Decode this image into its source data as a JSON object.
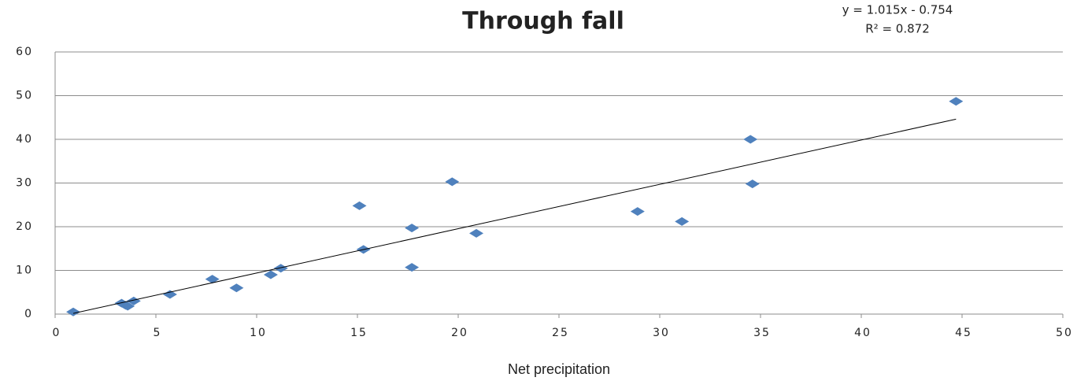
{
  "chart_data": {
    "type": "scatter",
    "title": "Through fall",
    "x_label": "Net precipitation",
    "x": [
      0.9,
      3.3,
      3.5,
      3.6,
      3.9,
      5.7,
      7.8,
      9.0,
      10.7,
      11.2,
      15.1,
      15.3,
      17.7,
      17.7,
      19.7,
      20.9,
      28.9,
      31.1,
      34.5,
      34.6,
      44.7
    ],
    "values": [
      0.5,
      2.5,
      2,
      1.8,
      3,
      4.5,
      8,
      6,
      9,
      10.5,
      24.8,
      14.8,
      19.7,
      10.7,
      30.3,
      18.5,
      23.5,
      21.2,
      40,
      29.8,
      48.7
    ],
    "color": "#4f81bd",
    "trendline": {
      "equation": "y = 1.015x - 0.754",
      "r2": "R² = 0.872",
      "slope": 1.015,
      "intercept": -0.754
    },
    "xlim": [
      0,
      50
    ],
    "xticks": [
      0,
      5,
      10,
      15,
      20,
      25,
      30,
      35,
      40,
      45,
      50
    ],
    "ylim": [
      0,
      60
    ],
    "yticks": [
      0,
      10,
      20,
      30,
      40,
      50,
      60
    ],
    "grid": true
  }
}
